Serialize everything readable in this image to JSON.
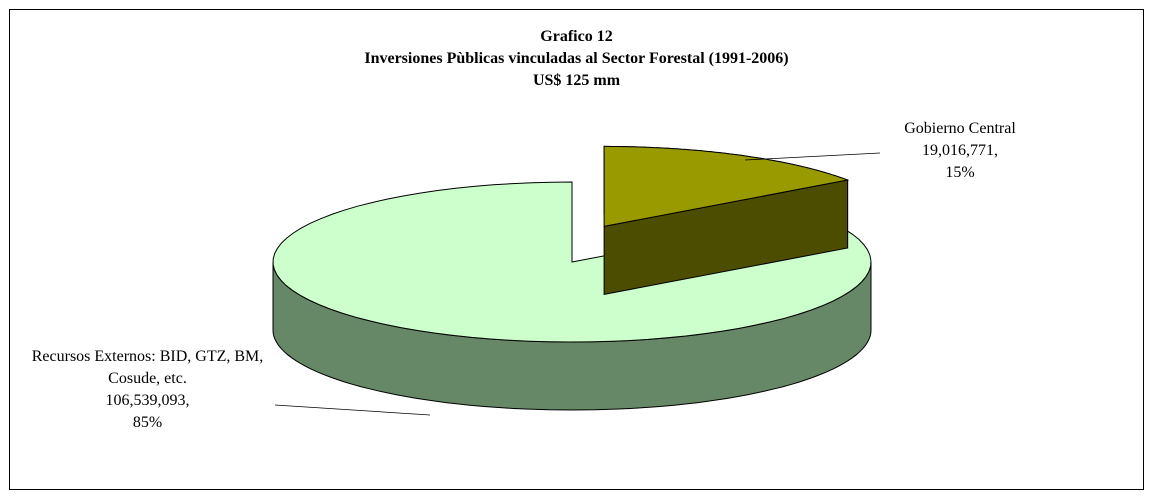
{
  "chart_data": {
    "type": "pie3d",
    "title": [
      "Grafico 12",
      "Inversiones Pùblicas vinculadas al Sector Forestal (1991-2006)",
      "US$ 125 mm"
    ],
    "categories": [
      "Gobierno Central",
      "Recursos Externos: BID, GTZ, BM, Cosude, etc."
    ],
    "values": [
      19016771,
      106539093
    ],
    "value_labels": [
      "19,016,771,",
      "106,539,093,"
    ],
    "percents": [
      15,
      85
    ],
    "percent_labels": [
      "15%",
      "85%"
    ],
    "colors": [
      "#999900",
      "#ccffcc"
    ],
    "side_colors": [
      "#4d4d00",
      "#668866"
    ]
  }
}
